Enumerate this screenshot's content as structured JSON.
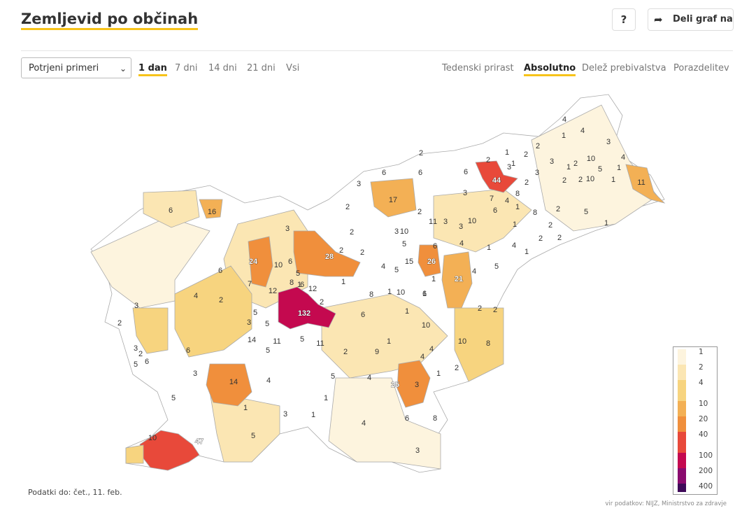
{
  "header": {
    "title": "Zemljevid po občinah",
    "help_label": "?",
    "share_label": "Deli graf na",
    "share_icon": "share-arrow-icon"
  },
  "controls": {
    "select_value": "Potrjeni primeri",
    "ranges": [
      "1 dan",
      "7 dni",
      "14 dni",
      "21 dni",
      "Vsi"
    ],
    "active_range": "1 dan",
    "modes": [
      "Tedenski prirast",
      "Absolutno",
      "Delež prebivalstva",
      "Porazdelitev"
    ],
    "active_mode": "Absolutno"
  },
  "map": {
    "colors": {
      "c0": "#ffffff",
      "c1": "#fdf4de",
      "c2": "#fbe6b3",
      "c4": "#f7d47f",
      "c10": "#f3b055",
      "c20": "#f08f3c",
      "c40": "#e8493a",
      "c100": "#c4094f"
    },
    "labels": [
      "4",
      "4",
      "1",
      "3",
      "2",
      "1",
      "2",
      "1",
      "3",
      "2",
      "10",
      "4",
      "1",
      "3",
      "1",
      "5",
      "11",
      "2",
      "6",
      "2",
      "44",
      "2",
      "2",
      "1",
      "3",
      "8",
      "7",
      "4",
      "1",
      "8",
      "2",
      "2",
      "5",
      "1",
      "6",
      "16",
      "17",
      "2",
      "6",
      "6",
      "10",
      "6",
      "3",
      "2",
      "3",
      "2",
      "1",
      "3",
      "10",
      "1",
      "3",
      "1",
      "10",
      "1",
      "2",
      "1",
      "5",
      "4",
      "1",
      "4",
      "5",
      "2",
      "28",
      "2",
      "2",
      "3",
      "6",
      "24",
      "10",
      "6",
      "6",
      "3",
      "5",
      "26",
      "1",
      "4",
      "1",
      "2",
      "5",
      "1",
      "8",
      "4",
      "7",
      "12",
      "12",
      "21",
      "15",
      "6",
      "4",
      "1",
      "10",
      "6",
      "8",
      "2",
      "2",
      "132",
      "2",
      "3",
      "3",
      "5",
      "1",
      "5",
      "6",
      "2",
      "2",
      "10",
      "8",
      "14",
      "11",
      "5",
      "5",
      "11",
      "9",
      "1",
      "2",
      "4",
      "4",
      "10",
      "6",
      "3",
      "2",
      "6",
      "5",
      "14",
      "4",
      "2",
      "1",
      "5",
      "25",
      "3",
      "3",
      "5",
      "4",
      "1",
      "1",
      "3",
      "1",
      "6",
      "8",
      "5",
      "3",
      "4",
      "10",
      "47"
    ]
  },
  "legend": {
    "ticks": [
      "1",
      "2",
      "4",
      "10",
      "20",
      "40",
      "100",
      "200",
      "400"
    ],
    "colors": [
      "#fdf4de",
      "#fbe6b3",
      "#f7d47f",
      "#f3b055",
      "#f08f3c",
      "#e8493a",
      "#c4094f",
      "#8a0b6e",
      "#3f0a59"
    ]
  },
  "footer": {
    "data_date": "Podatki do: čet., 11. feb.",
    "source": "vir podatkov: NIJZ, Ministrstvo za zdravje"
  }
}
